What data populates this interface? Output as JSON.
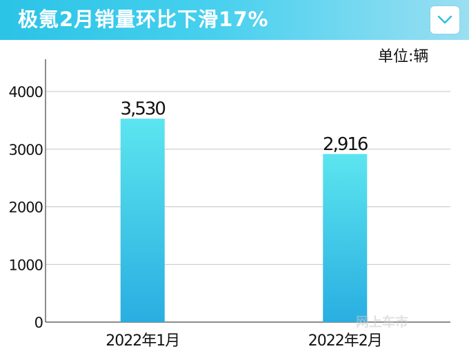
{
  "header": {
    "title": "极氪2月销量环比下滑17%"
  },
  "unit_label": "单位:辆",
  "watermark": "网上车市",
  "chart_data": {
    "type": "bar",
    "title": "",
    "xlabel": "",
    "ylabel": "",
    "categories": [
      "2022年1月",
      "2022年2月"
    ],
    "values": [
      3530,
      2916
    ],
    "value_labels": [
      "3,530",
      "2,916"
    ],
    "y_ticks": [
      "0",
      "1000",
      "2000",
      "3000",
      "4000"
    ],
    "ylim": [
      0,
      4000
    ],
    "grid": true,
    "bar_color_top": "#5ce5ef",
    "bar_color_bottom": "#29aee1"
  }
}
